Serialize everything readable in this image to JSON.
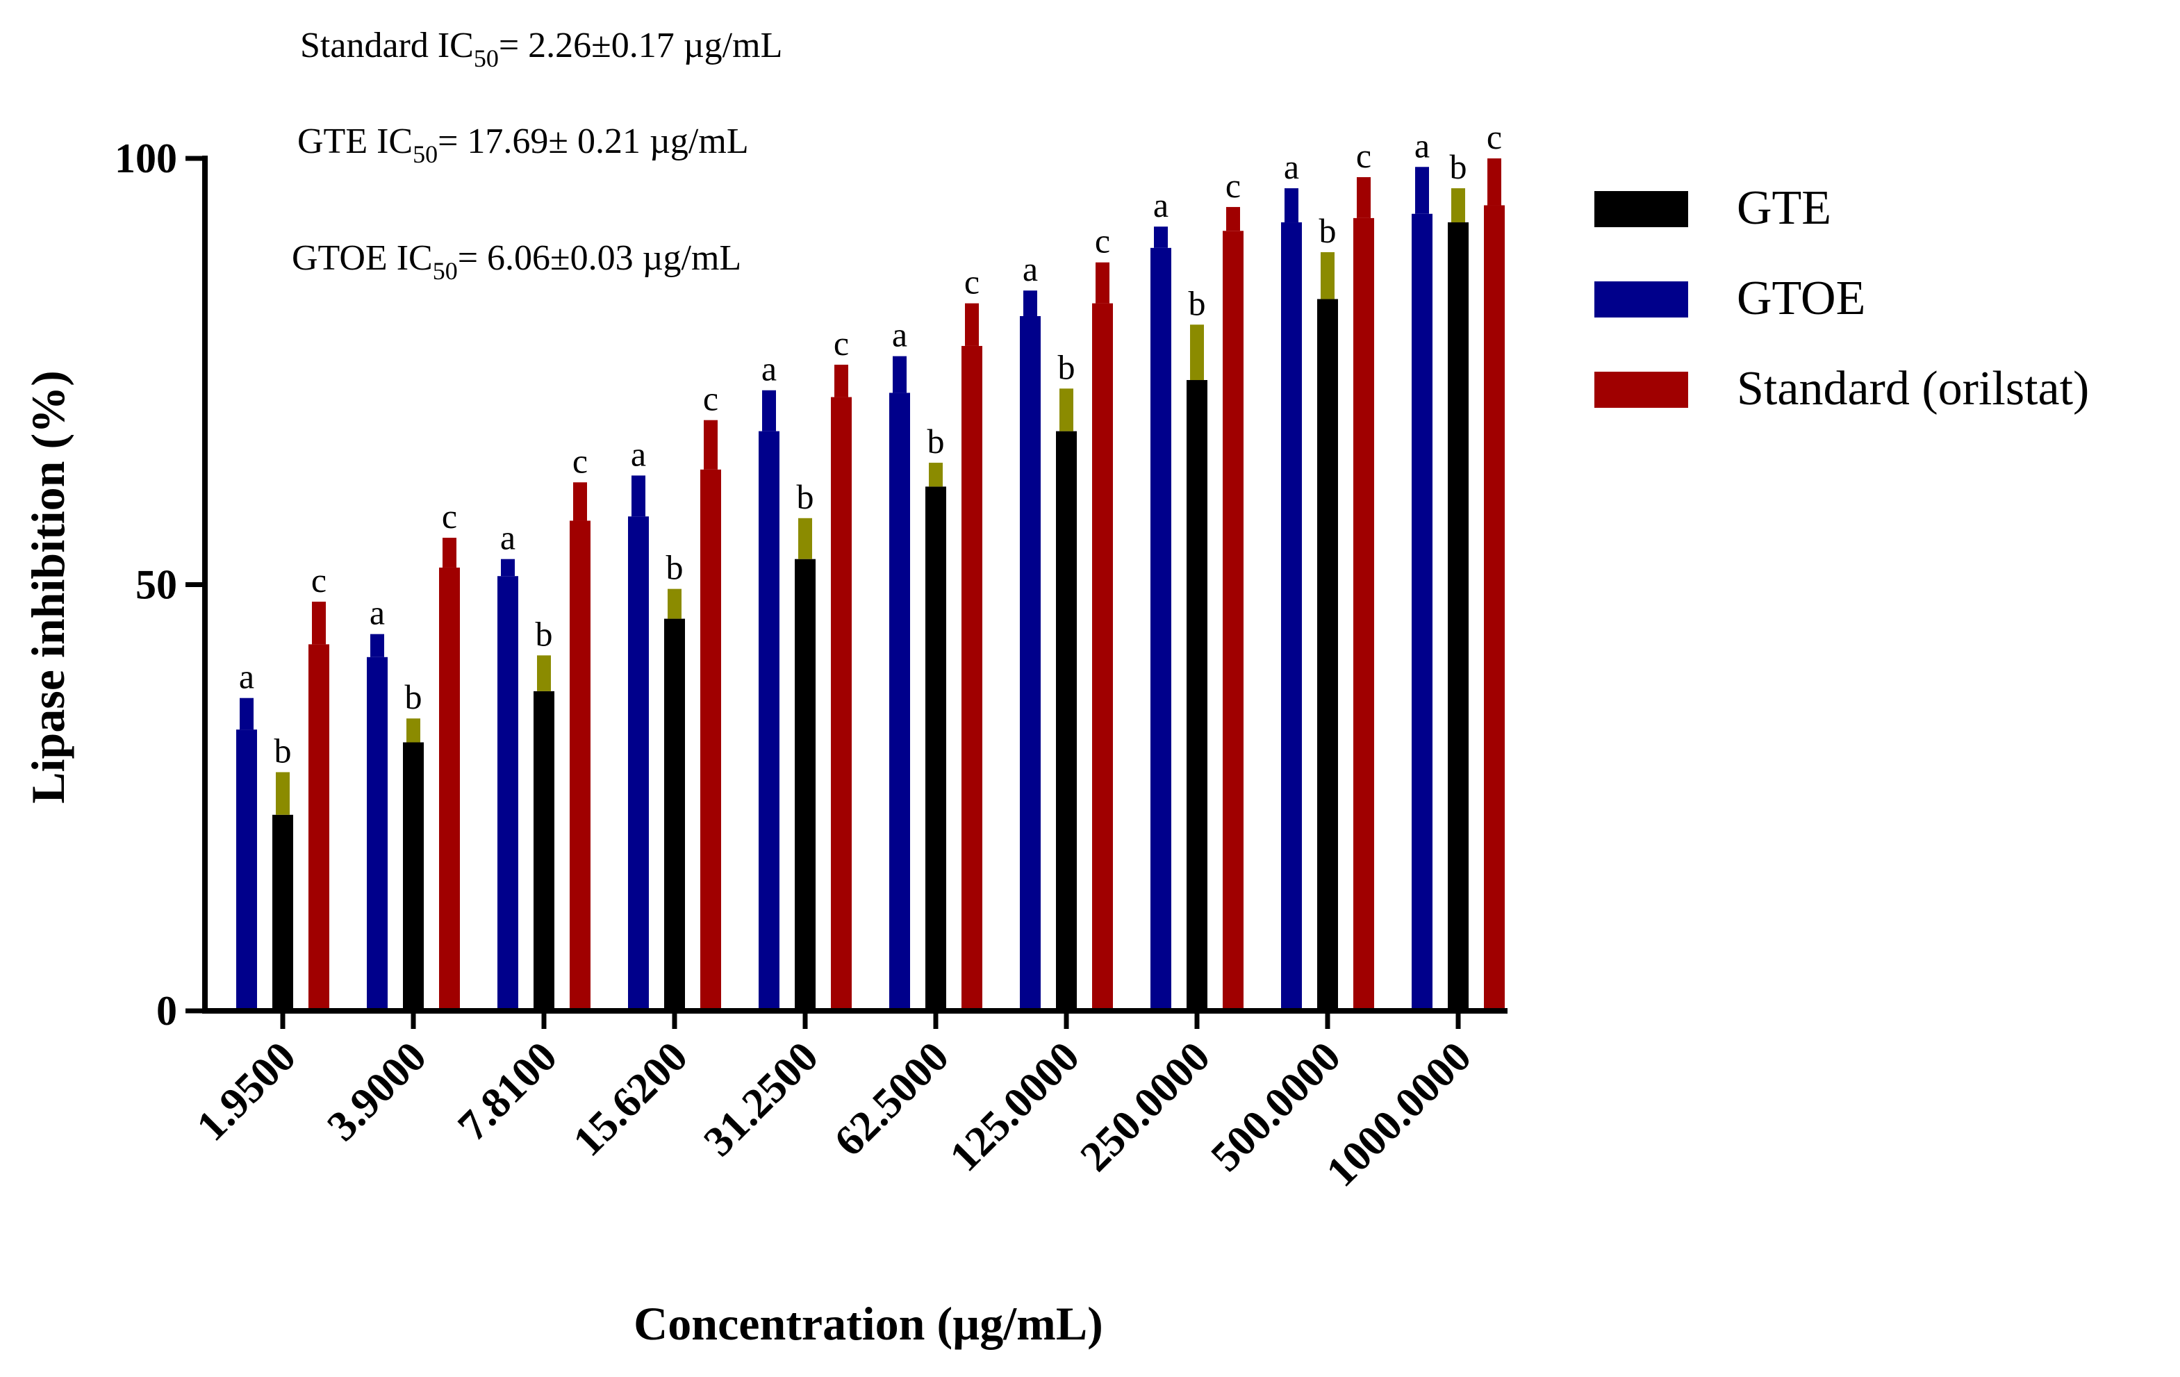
{
  "chart_data": {
    "type": "bar",
    "title": "",
    "xlabel": "Concentration (µg/mL)",
    "ylabel": "Lipase inhibition (%)",
    "ylim": [
      0,
      100
    ],
    "yticks": [
      0,
      50,
      100
    ],
    "grid": false,
    "legend_position": "right",
    "categories": [
      "1.9500",
      "3.9000",
      "7.8100",
      "15.6200",
      "31.2500",
      "62.5000",
      "125.0000",
      "250.0000",
      "500.0000",
      "1000.0000"
    ],
    "series": [
      {
        "name": "GTOE",
        "color": "#00008b",
        "error_color": "#00008b",
        "values": [
          33,
          41.5,
          51,
          58,
          68,
          72.5,
          81.5,
          89.5,
          92.5,
          93.5
        ],
        "errors": [
          3.7,
          2.7,
          2,
          4.8,
          4.8,
          4.3,
          3,
          2.5,
          4,
          5.5
        ],
        "letters": [
          "a",
          "a",
          "a",
          "a",
          "a",
          "a",
          "a",
          "a",
          "a",
          "a"
        ]
      },
      {
        "name": "GTE",
        "color": "#000000",
        "error_color": "#8b8b00",
        "values": [
          23,
          31.5,
          37.5,
          46,
          53,
          61.5,
          68,
          74,
          83.5,
          92.5
        ],
        "errors": [
          5,
          2.8,
          4.2,
          3.5,
          4.8,
          2.8,
          5,
          6.5,
          5.5,
          4
        ],
        "letters": [
          "b",
          "b",
          "b",
          "b",
          "b",
          "b",
          "b",
          "b",
          "b",
          "b"
        ]
      },
      {
        "name": "Standard (orilstat)",
        "color": "#a00000",
        "error_color": "#a00000",
        "values": [
          43,
          52,
          57.5,
          63.5,
          72,
          78,
          83,
          91.5,
          93,
          94.5
        ],
        "errors": [
          5,
          3.5,
          4.5,
          5.8,
          3.8,
          5,
          4.8,
          2.8,
          4.8,
          5.5
        ],
        "letters": [
          "c",
          "c",
          "c",
          "c",
          "c",
          "c",
          "c",
          "c",
          "c",
          "c"
        ]
      }
    ],
    "legend": [
      {
        "name": "GTE",
        "color": "#000000"
      },
      {
        "name": "GTOE",
        "color": "#00008b"
      },
      {
        "name": "Standard (orilstat)",
        "color": "#a00000"
      }
    ],
    "annotations": [
      {
        "prefix": "Standard IC",
        "sub": "50",
        "suffix": "= 2.26±0.17 µg/mL"
      },
      {
        "prefix": "GTE IC",
        "sub": "50",
        "suffix": "= 17.69± 0.21 µg/mL"
      },
      {
        "prefix": "GTOE IC",
        "sub": "50",
        "suffix": "= 6.06±0.03  µg/mL"
      }
    ]
  }
}
